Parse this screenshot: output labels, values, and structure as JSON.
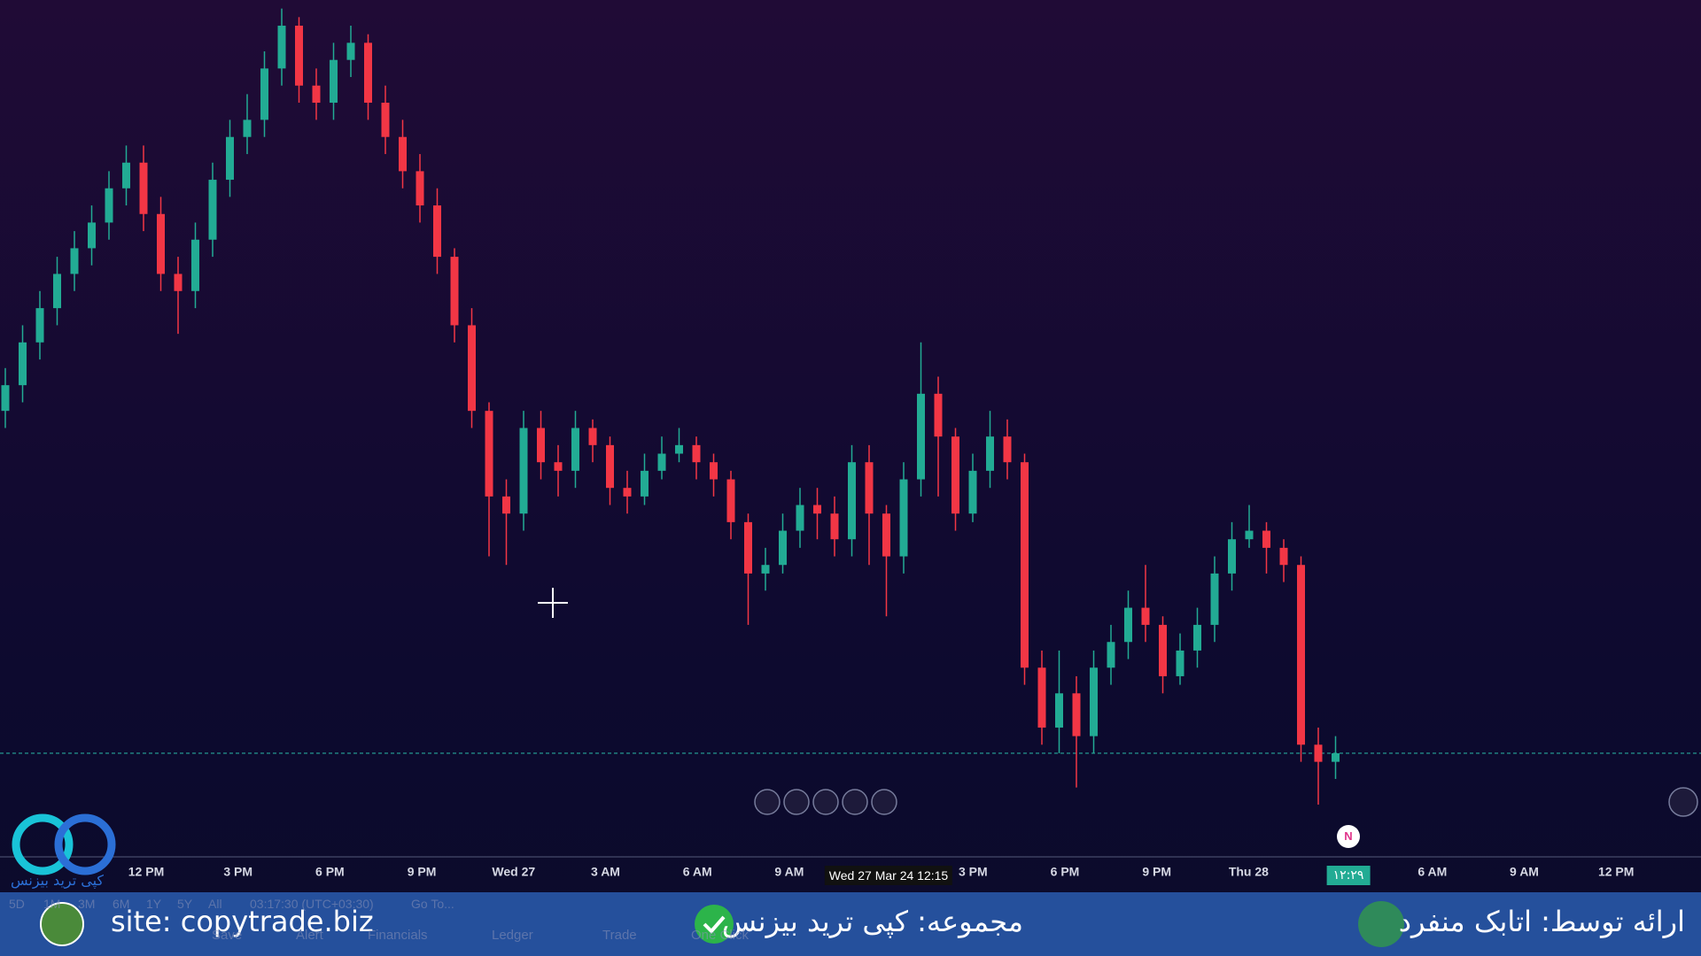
{
  "chart_data": {
    "type": "candlestick",
    "candles": [
      [
        52,
        57,
        50,
        55
      ],
      [
        55,
        62,
        53,
        60
      ],
      [
        60,
        66,
        58,
        64
      ],
      [
        64,
        70,
        62,
        68
      ],
      [
        68,
        73,
        66,
        71
      ],
      [
        71,
        76,
        69,
        74
      ],
      [
        74,
        80,
        72,
        78
      ],
      [
        78,
        83,
        76,
        81
      ],
      [
        81,
        83,
        73,
        75
      ],
      [
        75,
        77,
        66,
        68
      ],
      [
        68,
        70,
        61,
        66
      ],
      [
        66,
        74,
        64,
        72
      ],
      [
        72,
        81,
        70,
        79
      ],
      [
        79,
        86,
        77,
        84
      ],
      [
        84,
        89,
        82,
        86
      ],
      [
        86,
        94,
        84,
        92
      ],
      [
        92,
        99,
        90,
        97
      ],
      [
        97,
        98,
        88,
        90
      ],
      [
        90,
        92,
        86,
        88
      ],
      [
        88,
        95,
        86,
        93
      ],
      [
        93,
        97,
        91,
        95
      ],
      [
        95,
        96,
        86,
        88
      ],
      [
        88,
        90,
        82,
        84
      ],
      [
        84,
        86,
        78,
        80
      ],
      [
        80,
        82,
        74,
        76
      ],
      [
        76,
        78,
        68,
        70
      ],
      [
        70,
        71,
        60,
        62
      ],
      [
        62,
        64,
        50,
        52
      ],
      [
        52,
        53,
        35,
        42
      ],
      [
        42,
        44,
        34,
        40
      ],
      [
        40,
        52,
        38,
        50
      ],
      [
        50,
        52,
        44,
        46
      ],
      [
        46,
        48,
        42,
        45
      ],
      [
        45,
        52,
        43,
        50
      ],
      [
        50,
        51,
        46,
        48
      ],
      [
        48,
        49,
        41,
        43
      ],
      [
        43,
        45,
        40,
        42
      ],
      [
        42,
        47,
        41,
        45
      ],
      [
        45,
        49,
        44,
        47
      ],
      [
        47,
        50,
        46,
        48
      ],
      [
        48,
        49,
        44,
        46
      ],
      [
        46,
        47,
        42,
        44
      ],
      [
        44,
        45,
        37,
        39
      ],
      [
        39,
        40,
        27,
        33
      ],
      [
        33,
        36,
        31,
        34
      ],
      [
        34,
        40,
        33,
        38
      ],
      [
        38,
        43,
        36,
        41
      ],
      [
        41,
        43,
        37,
        40
      ],
      [
        40,
        42,
        35,
        37
      ],
      [
        37,
        48,
        35,
        46
      ],
      [
        46,
        48,
        34,
        40
      ],
      [
        40,
        41,
        28,
        35
      ],
      [
        35,
        46,
        33,
        44
      ],
      [
        44,
        60,
        42,
        54
      ],
      [
        54,
        56,
        42,
        49
      ],
      [
        49,
        50,
        38,
        40
      ],
      [
        40,
        47,
        39,
        45
      ],
      [
        45,
        52,
        43,
        49
      ],
      [
        49,
        51,
        44,
        46
      ],
      [
        46,
        47,
        20,
        22
      ],
      [
        22,
        24,
        13,
        15
      ],
      [
        15,
        24,
        12,
        19
      ],
      [
        19,
        21,
        8,
        14
      ],
      [
        14,
        24,
        12,
        22
      ],
      [
        22,
        27,
        20,
        25
      ],
      [
        25,
        31,
        23,
        29
      ],
      [
        29,
        34,
        25,
        27
      ],
      [
        27,
        28,
        19,
        21
      ],
      [
        21,
        26,
        20,
        24
      ],
      [
        24,
        29,
        22,
        27
      ],
      [
        27,
        35,
        25,
        33
      ],
      [
        33,
        39,
        31,
        37
      ],
      [
        37,
        41,
        36,
        38
      ],
      [
        38,
        39,
        33,
        36
      ],
      [
        36,
        37,
        32,
        34
      ],
      [
        34,
        35,
        11,
        13
      ],
      [
        13,
        15,
        6,
        11
      ],
      [
        11,
        14,
        9,
        12
      ]
    ],
    "ylim": [
      0,
      100
    ],
    "up_color": "#22ab94",
    "down_color": "#f23645",
    "price_line": 12,
    "x_labels": [
      "12 PM",
      "3 PM",
      "6 PM",
      "9 PM",
      "Wed 27",
      "3 AM",
      "6 AM",
      "9 AM",
      null,
      "3 PM",
      "6 PM",
      "9 PM",
      "Thu 28",
      null,
      "6 AM",
      "9 AM",
      "12 PM"
    ],
    "crosshair_label": "Wed 27 Mar 24 12:15",
    "last_time_label": "۱۲:۲۹",
    "event_marker": "N"
  },
  "toolbar": {
    "ranges": [
      "5D",
      "1M",
      "3M",
      "6M",
      "1Y",
      "5Y",
      "All"
    ],
    "clock": "03:17:30 (UTC+03:30)",
    "goto": "Go To...",
    "buttons": [
      "Save",
      "Alert",
      "Financials",
      "Ledger",
      "Trade",
      "One Click"
    ]
  },
  "overlay": {
    "site": "site: copytrade.biz",
    "collection": "مجموعه: کپی ترید بیزنس",
    "presenter": "ارائه توسط: اتابک منفرد",
    "logo_text": "کپی ترید بیزنس"
  }
}
